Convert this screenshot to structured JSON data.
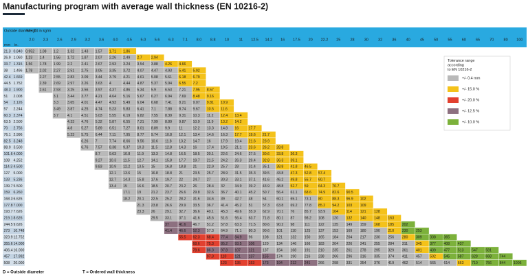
{
  "title": "Manufacturing program with average wall thickness (EN 10216-2)",
  "header": {
    "od": "Outside diameter D",
    "weight": "Weight in kg/m",
    "mm": "mm",
    "inch": "in."
  },
  "thickness": [
    "2.0",
    "2.3",
    "2.6",
    "2.9",
    "3.2",
    "3.6",
    "4.0",
    "4.5",
    "5.0",
    "5.6",
    "6.3",
    "7.1",
    "8.0",
    "8.8",
    "10",
    "11",
    "12.5",
    "14.2",
    "16",
    "17.5",
    "20",
    "22.2",
    "25",
    "28",
    "30",
    "32",
    "36",
    "40",
    "45",
    "50",
    "55",
    "60",
    "65",
    "70",
    "80",
    "100"
  ],
  "tolerance": {
    "title": "Tolerance range according to EN 10216-2",
    "items": [
      {
        "color": "#b9b9b9",
        "label": "+/- 0.4 mm"
      },
      {
        "color": "#f4c21a",
        "label": "+/- 15.0 %"
      },
      {
        "color": "#e2402f",
        "label": "+/- 20.0 %"
      },
      {
        "color": "#8d7080",
        "label": "+/- 12.5 %"
      },
      {
        "color": "#7cb13b",
        "label": "+/- 10.0 %"
      }
    ]
  },
  "rows": [
    {
      "od": 21.3,
      "inch": "0.840",
      "values": [
        0.952,
        1.08,
        1.2,
        1.32,
        1.43,
        1.57,
        1.71,
        1.86
      ],
      "tol": "00000011"
    },
    {
      "od": 26.9,
      "inch": "1.060",
      "values": [
        1.23,
        1.4,
        1.56,
        1.72,
        1.87,
        2.07,
        2.26,
        2.49,
        2.7,
        2.94
      ],
      "tol": "0000000011"
    },
    {
      "od": 33.7,
      "inch": "1.315",
      "values": [
        1.56,
        1.78,
        1.99,
        2.2,
        2.41,
        2.67,
        2.93,
        3.24,
        3.54,
        3.88,
        4.26,
        4.66
      ],
      "tol": "000000000011"
    },
    {
      "od": 38,
      "inch": "1.496",
      "values": [
        1.78,
        2.02,
        2.27,
        2.51,
        2.75,
        3.05,
        3.35,
        3.72,
        4.07,
        4.47,
        4.93,
        5.41,
        5.92
      ],
      "tol": "0000000000011"
    },
    {
      "od": 42.4,
      "inch": "1.669",
      "values": [
        null,
        2.27,
        2.55,
        2.83,
        3.09,
        3.44,
        3.79,
        4.21,
        4.61,
        5.08,
        5.61,
        6.18,
        6.79
      ],
      "tol": "000000000011"
    },
    {
      "od": 44.5,
      "inch": "1.752",
      "values": [
        null,
        2.39,
        2.69,
        2.97,
        3.26,
        3.63,
        4.0,
        4.44,
        4.87,
        5.37,
        5.94,
        6.55,
        7.2
      ],
      "tol": "000000000011"
    },
    {
      "od": 48.3,
      "inch": "1.900",
      "values": [
        null,
        2.61,
        2.93,
        3.25,
        3.56,
        3.97,
        4.37,
        4.86,
        5.34,
        5.9,
        6.53,
        7.21,
        7.95,
        8.57
      ],
      "tol": "0000000000011"
    },
    {
      "od": 51,
      "inch": "2.008",
      "values": [
        null,
        null,
        3.1,
        3.44,
        3.77,
        4.21,
        4.64,
        5.16,
        5.67,
        6.27,
        6.94,
        7.69,
        8.48,
        9.16
      ],
      "tol": "000000000011"
    },
    {
      "od": 54,
      "inch": "2.126",
      "values": [
        null,
        null,
        3.3,
        3.65,
        4.01,
        4.47,
        4.93,
        5.49,
        6.04,
        6.68,
        7.41,
        8.21,
        9.07,
        9.81,
        10.9
      ],
      "tol": "0000000000011"
    },
    {
      "od": 57,
      "inch": "2.244",
      "values": [
        null,
        null,
        3.49,
        3.87,
        4.25,
        4.74,
        5.23,
        5.83,
        6.41,
        7.1,
        7.88,
        8.74,
        9.67,
        10.5,
        11.6
      ],
      "tol": "0000000000011"
    },
    {
      "od": 60.3,
      "inch": "2.374",
      "values": [
        null,
        null,
        3.7,
        4.1,
        4.51,
        5.03,
        5.55,
        6.19,
        6.82,
        7.55,
        8.39,
        9.31,
        10.3,
        11.2,
        12.4,
        13.4
      ],
      "tol": "00000000000011"
    },
    {
      "od": 63.5,
      "inch": "2.500",
      "values": [
        null,
        null,
        null,
        4.33,
        4.76,
        5.32,
        5.87,
        6.55,
        7.21,
        7.99,
        8.89,
        9.87,
        10.9,
        11.9,
        13.2,
        14.2
      ],
      "tol": "0000000000011"
    },
    {
      "od": 70,
      "inch": "2.756",
      "values": [
        null,
        null,
        null,
        4.8,
        5.27,
        5.89,
        6.51,
        7.27,
        8.01,
        8.89,
        9.9,
        11.0,
        12.2,
        13.3,
        14.8,
        16.0,
        17.7
      ],
      "tol": "00000000000011"
    },
    {
      "od": 76.1,
      "inch": "2.996",
      "values": [
        null,
        null,
        null,
        5.23,
        5.75,
        6.44,
        7.11,
        7.95,
        8.77,
        9.74,
        10.8,
        12.1,
        13.4,
        14.6,
        16.3,
        17.7,
        19.6,
        21.7
      ],
      "tol": "000000000000111"
    },
    {
      "od": 82.5,
      "inch": "3.248",
      "values": [
        null,
        null,
        null,
        null,
        6.26,
        7.0,
        7.74,
        8.66,
        9.56,
        10.6,
        11.8,
        13.2,
        14.7,
        16.0,
        17.9,
        19.4,
        21.6,
        23.9
      ],
      "tol": "00000000000011"
    },
    {
      "od": 88.9,
      "inch": "3.500",
      "values": [
        null,
        null,
        null,
        null,
        6.76,
        7.57,
        8.38,
        9.37,
        10.3,
        11.5,
        12.8,
        14.3,
        16.0,
        17.4,
        19.5,
        21.1,
        23.6,
        26.2,
        28.8
      ],
      "tol": "000000000000111"
    },
    {
      "od": 101.6,
      "inch": "4.000",
      "values": [
        null,
        null,
        null,
        null,
        null,
        8.7,
        9.63,
        10.8,
        11.9,
        13.3,
        14.8,
        16.5,
        18.5,
        20.1,
        22.6,
        24.6,
        27.5,
        30.6,
        33.8,
        36.3
      ],
      "tol": "000000000000111"
    },
    {
      "od": 108,
      "inch": "4.252",
      "values": [
        null,
        null,
        null,
        null,
        null,
        9.27,
        10.3,
        11.5,
        12.7,
        14.1,
        15.8,
        17.7,
        19.7,
        21.5,
        24.2,
        26.3,
        29.4,
        32.8,
        36.3,
        39.1
      ],
      "tol": "000000000000111"
    },
    {
      "od": 114.3,
      "inch": "4.500",
      "values": [
        null,
        null,
        null,
        null,
        null,
        9.83,
        10.9,
        12.2,
        13.5,
        15.0,
        16.8,
        18.8,
        21.0,
        22.9,
        25.7,
        28.0,
        31.4,
        35.1,
        38.8,
        41.8,
        46.5
      ],
      "tol": "0000000000000111"
    },
    {
      "od": 127,
      "inch": "5.000",
      "values": [
        null,
        null,
        null,
        null,
        null,
        null,
        12.1,
        13.6,
        15.0,
        16.8,
        18.8,
        21.0,
        23.5,
        25.7,
        28.9,
        31.5,
        35.3,
        39.5,
        43.8,
        47.3,
        52.8,
        57.4
      ],
      "tol": "0000000000000111"
    },
    {
      "od": 133,
      "inch": "5.236",
      "values": [
        null,
        null,
        null,
        null,
        null,
        null,
        12.7,
        14.3,
        15.8,
        17.6,
        19.7,
        22.0,
        24.7,
        27.0,
        30.3,
        33.1,
        37.1,
        41.6,
        46.2,
        49.8,
        55.7,
        60.7
      ],
      "tol": "0000000000000111"
    },
    {
      "od": 139.7,
      "inch": "5.500",
      "values": [
        null,
        null,
        null,
        null,
        null,
        null,
        13.4,
        15.0,
        16.6,
        18.5,
        20.7,
        23.2,
        26.0,
        28.4,
        32.0,
        34.9,
        39.2,
        43.9,
        48.8,
        52.7,
        59.0,
        64.3,
        70.7
      ],
      "tol": "00000000000001111"
    },
    {
      "od": 159,
      "inch": "6.260",
      "values": [
        null,
        null,
        null,
        null,
        null,
        null,
        null,
        17.1,
        19.0,
        21.2,
        23.7,
        26.6,
        29.8,
        32.6,
        36.7,
        40.1,
        45.2,
        50.7,
        56.4,
        61.1,
        68.6,
        74.9,
        82.6,
        90.5
      ],
      "tol": "00000000000001111"
    },
    {
      "od": 168.3,
      "inch": "6.626",
      "values": [
        null,
        null,
        null,
        null,
        null,
        null,
        null,
        18.2,
        20.1,
        22.5,
        25.2,
        28.2,
        31.6,
        34.6,
        39.0,
        42.7,
        48.0,
        54.0,
        60.1,
        65.1,
        73.1,
        80.0,
        88.3,
        96.9,
        102
      ],
      "tol": "000000000000001111"
    },
    {
      "od": 177.8,
      "inch": "7.000",
      "values": [
        null,
        null,
        null,
        null,
        null,
        null,
        null,
        null,
        21.3,
        23.8,
        26.6,
        29.9,
        33.5,
        36.7,
        41.4,
        45.2,
        51.0,
        57.3,
        63.8,
        69.2,
        77.8,
        85.2,
        94.2,
        103,
        109
      ],
      "tol": "00000000000001111"
    },
    {
      "od": 193.7,
      "inch": "7.626",
      "values": [
        null,
        null,
        null,
        null,
        null,
        null,
        null,
        null,
        23.3,
        26.0,
        29.1,
        32.7,
        36.6,
        40.1,
        45.3,
        49.6,
        55.9,
        62.9,
        70.1,
        76.0,
        85.7,
        93.9,
        104,
        114,
        121,
        128
      ],
      "tol": "000000000000001111"
    },
    {
      "od": 219.1,
      "inch": "8.626",
      "values": [
        null,
        null,
        null,
        null,
        null,
        null,
        null,
        null,
        null,
        29.5,
        33.1,
        37.1,
        41.6,
        45.6,
        51.6,
        56.4,
        63.7,
        71.8,
        80.1,
        87.0,
        98.2,
        108,
        120,
        132,
        140,
        148,
        163
      ],
      "tol": "000000000000001111"
    },
    {
      "od": 244.5,
      "inch": "9.626",
      "values": [
        null,
        null,
        null,
        null,
        null,
        null,
        null,
        null,
        null,
        null,
        37.0,
        41.6,
        46.7,
        51.2,
        57.8,
        63.3,
        71.5,
        80.6,
        90.2,
        98.0,
        111,
        122,
        135,
        149,
        159,
        168,
        185,
        202
      ],
      "tol": "330000000000000114"
    },
    {
      "od": 273,
      "inch": "10.748",
      "values": [
        null,
        null,
        null,
        null,
        null,
        null,
        null,
        null,
        null,
        null,
        41.4,
        46.6,
        52.3,
        57.3,
        64.9,
        71.1,
        80.3,
        90.6,
        101,
        110,
        125,
        137,
        153,
        169,
        180,
        190,
        210,
        230,
        253
      ],
      "tol": "3330000000000000144"
    },
    {
      "od": 323.9,
      "inch": "12.752",
      "values": [
        null,
        null,
        null,
        null,
        null,
        null,
        null,
        null,
        null,
        null,
        null,
        55.5,
        62.3,
        68.4,
        77.4,
        84.9,
        96.0,
        108,
        121,
        132,
        150,
        165,
        184,
        204,
        217,
        230,
        256,
        280,
        309,
        338,
        365
      ],
      "tol": "22233000000000001444"
    },
    {
      "od": 355.6,
      "inch": "14.000",
      "values": [
        null,
        null,
        null,
        null,
        null,
        null,
        null,
        null,
        null,
        null,
        null,
        null,
        68.6,
        75.3,
        85.2,
        93.5,
        106,
        120,
        134,
        146,
        166,
        183,
        204,
        226,
        241,
        255,
        284,
        311,
        345,
        377,
        408,
        437
      ],
      "tol": "22333000000000001444"
    },
    {
      "od": 406.4,
      "inch": "16.000",
      "values": [
        null,
        null,
        null,
        null,
        null,
        null,
        null,
        null,
        null,
        null,
        null,
        null,
        78.6,
        86.3,
        97.8,
        107,
        121,
        137,
        154,
        168,
        191,
        210,
        235,
        261,
        278,
        295,
        329,
        361,
        401,
        439,
        477,
        513,
        547,
        581
      ],
      "tol": "2333300000000000144444"
    },
    {
      "od": 457,
      "inch": "17.992",
      "values": [
        null,
        null,
        null,
        null,
        null,
        null,
        null,
        null,
        null,
        null,
        null,
        null,
        null,
        97.3,
        110,
        121,
        137,
        155,
        174,
        190,
        216,
        238,
        266,
        296,
        316,
        335,
        374,
        411,
        457,
        502,
        545,
        587,
        628,
        668,
        744
      ],
      "tol": "2233300000000000144444"
    },
    {
      "od": 508,
      "inch": "20.000",
      "values": [
        null,
        null,
        null,
        null,
        null,
        null,
        null,
        null,
        null,
        null,
        null,
        null,
        null,
        null,
        123,
        135,
        153,
        173,
        194,
        212,
        241,
        266,
        298,
        331,
        354,
        376,
        419,
        462,
        514,
        565,
        614,
        663,
        710,
        756,
        844,
        1006
      ],
      "tol": "2223333000000000014444"
    }
  ],
  "footer": [
    "D = Outside diameter",
    "T = Ordered wall thickness"
  ]
}
